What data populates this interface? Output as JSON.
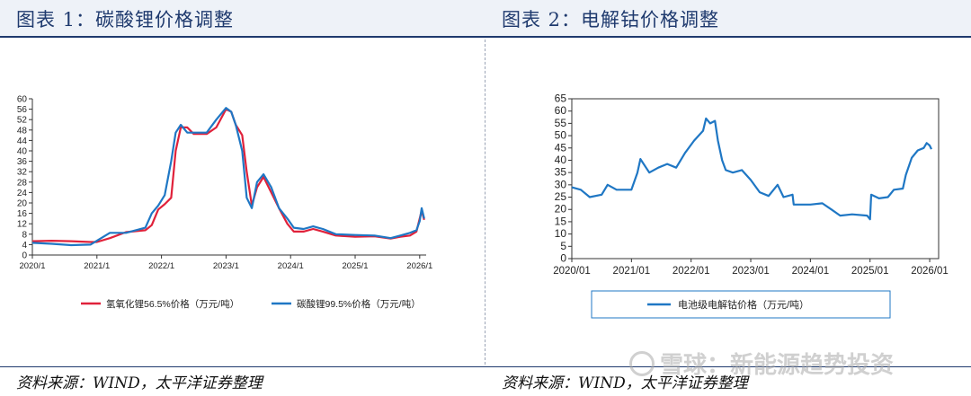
{
  "panels": {
    "left": {
      "title": "图表 1：碳酸锂价格调整",
      "source": "资料来源：WIND，太平洋证券整理"
    },
    "right": {
      "title": "图表 2：电解钴价格调整",
      "source": "资料来源：WIND，太平洋证券整理"
    }
  },
  "watermark": "雪球：新能源趋势投资",
  "colors": {
    "title": "#1f3a6e",
    "red_series": "#e0213a",
    "blue_series": "#1f77c4"
  },
  "chart_data": [
    {
      "type": "line",
      "x_ticks": [
        "2020/1",
        "2021/1",
        "2022/1",
        "2023/1",
        "2024/1",
        "2025/1",
        "2026/1"
      ],
      "ylim": [
        0,
        60
      ],
      "y_ticks": [
        0,
        4,
        8,
        12,
        16,
        20,
        24,
        28,
        32,
        36,
        40,
        44,
        48,
        52,
        56,
        60
      ],
      "legend_position": "bottom",
      "series": [
        {
          "name": "氢氧化锂56.5%价格（万元/吨）",
          "color": "#e0213a",
          "points": [
            [
              2020.0,
              5.3
            ],
            [
              2020.3,
              5.5
            ],
            [
              2020.6,
              5.3
            ],
            [
              2020.9,
              5.0
            ],
            [
              2021.0,
              5.0
            ],
            [
              2021.2,
              6.5
            ],
            [
              2021.45,
              8.8
            ],
            [
              2021.75,
              9.5
            ],
            [
              2021.85,
              11.5
            ],
            [
              2021.95,
              17.5
            ],
            [
              2022.05,
              19.5
            ],
            [
              2022.15,
              22.0
            ],
            [
              2022.22,
              40.0
            ],
            [
              2022.3,
              49.0
            ],
            [
              2022.4,
              49.0
            ],
            [
              2022.5,
              46.5
            ],
            [
              2022.7,
              46.5
            ],
            [
              2022.85,
              49.0
            ],
            [
              2023.0,
              56.0
            ],
            [
              2023.08,
              55.0
            ],
            [
              2023.15,
              50.0
            ],
            [
              2023.25,
              46.0
            ],
            [
              2023.32,
              32.0
            ],
            [
              2023.4,
              19.0
            ],
            [
              2023.48,
              26.0
            ],
            [
              2023.58,
              30.0
            ],
            [
              2023.7,
              24.0
            ],
            [
              2023.82,
              18.0
            ],
            [
              2023.95,
              12.0
            ],
            [
              2024.05,
              9.0
            ],
            [
              2024.2,
              9.0
            ],
            [
              2024.35,
              10.0
            ],
            [
              2024.5,
              9.0
            ],
            [
              2024.7,
              7.5
            ],
            [
              2025.0,
              7.0
            ],
            [
              2025.3,
              7.2
            ],
            [
              2025.55,
              6.3
            ],
            [
              2025.7,
              7.0
            ],
            [
              2025.85,
              7.5
            ],
            [
              2025.95,
              9.0
            ],
            [
              2026.0,
              14.0
            ],
            [
              2026.03,
              17.0
            ],
            [
              2026.07,
              13.5
            ]
          ]
        },
        {
          "name": "碳酸锂99.5%价格（万元/吨）",
          "color": "#1f77c4",
          "points": [
            [
              2020.0,
              4.7
            ],
            [
              2020.3,
              4.3
            ],
            [
              2020.6,
              3.8
            ],
            [
              2020.9,
              4.0
            ],
            [
              2021.0,
              5.5
            ],
            [
              2021.2,
              8.5
            ],
            [
              2021.45,
              8.5
            ],
            [
              2021.75,
              10.5
            ],
            [
              2021.85,
              16.0
            ],
            [
              2021.95,
              19.0
            ],
            [
              2022.05,
              23.0
            ],
            [
              2022.15,
              36.0
            ],
            [
              2022.22,
              47.0
            ],
            [
              2022.3,
              50.0
            ],
            [
              2022.4,
              47.0
            ],
            [
              2022.5,
              47.0
            ],
            [
              2022.7,
              47.0
            ],
            [
              2022.85,
              52.0
            ],
            [
              2023.0,
              56.5
            ],
            [
              2023.08,
              55.0
            ],
            [
              2023.15,
              50.0
            ],
            [
              2023.25,
              40.0
            ],
            [
              2023.32,
              22.0
            ],
            [
              2023.4,
              18.0
            ],
            [
              2023.48,
              28.0
            ],
            [
              2023.58,
              31.0
            ],
            [
              2023.7,
              26.0
            ],
            [
              2023.82,
              18.0
            ],
            [
              2023.95,
              14.0
            ],
            [
              2024.05,
              10.5
            ],
            [
              2024.2,
              10.0
            ],
            [
              2024.35,
              11.0
            ],
            [
              2024.5,
              10.0
            ],
            [
              2024.7,
              8.0
            ],
            [
              2025.0,
              7.7
            ],
            [
              2025.3,
              7.5
            ],
            [
              2025.55,
              6.5
            ],
            [
              2025.7,
              7.5
            ],
            [
              2025.85,
              8.5
            ],
            [
              2025.95,
              9.5
            ],
            [
              2026.0,
              13.0
            ],
            [
              2026.03,
              18.0
            ],
            [
              2026.07,
              14.0
            ]
          ]
        }
      ]
    },
    {
      "type": "line",
      "x_ticks": [
        "2020/01",
        "2021/01",
        "2022/01",
        "2023/01",
        "2024/01",
        "2025/01",
        "2026/01"
      ],
      "ylim": [
        0,
        65
      ],
      "y_ticks": [
        0,
        5,
        10,
        15,
        20,
        25,
        30,
        35,
        40,
        45,
        50,
        55,
        60,
        65
      ],
      "legend_position": "bottom",
      "series": [
        {
          "name": "电池级电解钴价格（万元/吨）",
          "color": "#1f77c4",
          "points": [
            [
              2020.0,
              29.0
            ],
            [
              2020.15,
              28.0
            ],
            [
              2020.3,
              25.0
            ],
            [
              2020.5,
              26.0
            ],
            [
              2020.6,
              30.0
            ],
            [
              2020.75,
              28.0
            ],
            [
              2021.0,
              28.0
            ],
            [
              2021.1,
              35.0
            ],
            [
              2021.15,
              40.5
            ],
            [
              2021.3,
              35.0
            ],
            [
              2021.45,
              37.0
            ],
            [
              2021.6,
              38.5
            ],
            [
              2021.75,
              37.0
            ],
            [
              2021.9,
              43.0
            ],
            [
              2022.05,
              48.0
            ],
            [
              2022.2,
              52.0
            ],
            [
              2022.25,
              57.0
            ],
            [
              2022.32,
              55.0
            ],
            [
              2022.4,
              56.0
            ],
            [
              2022.45,
              48.0
            ],
            [
              2022.52,
              40.0
            ],
            [
              2022.58,
              36.0
            ],
            [
              2022.7,
              35.0
            ],
            [
              2022.85,
              36.0
            ],
            [
              2023.0,
              32.0
            ],
            [
              2023.15,
              27.0
            ],
            [
              2023.3,
              25.5
            ],
            [
              2023.45,
              30.0
            ],
            [
              2023.55,
              25.0
            ],
            [
              2023.7,
              26.0
            ],
            [
              2023.72,
              22.0
            ],
            [
              2024.0,
              22.0
            ],
            [
              2024.2,
              22.5
            ],
            [
              2024.35,
              20.0
            ],
            [
              2024.5,
              17.5
            ],
            [
              2024.7,
              18.0
            ],
            [
              2024.95,
              17.5
            ],
            [
              2025.0,
              16.0
            ],
            [
              2025.02,
              26.0
            ],
            [
              2025.15,
              24.5
            ],
            [
              2025.3,
              25.0
            ],
            [
              2025.4,
              28.0
            ],
            [
              2025.55,
              28.5
            ],
            [
              2025.6,
              34.0
            ],
            [
              2025.7,
              41.0
            ],
            [
              2025.8,
              44.0
            ],
            [
              2025.9,
              45.0
            ],
            [
              2025.95,
              47.0
            ],
            [
              2026.0,
              46.0
            ],
            [
              2026.03,
              44.5
            ]
          ]
        }
      ]
    }
  ]
}
